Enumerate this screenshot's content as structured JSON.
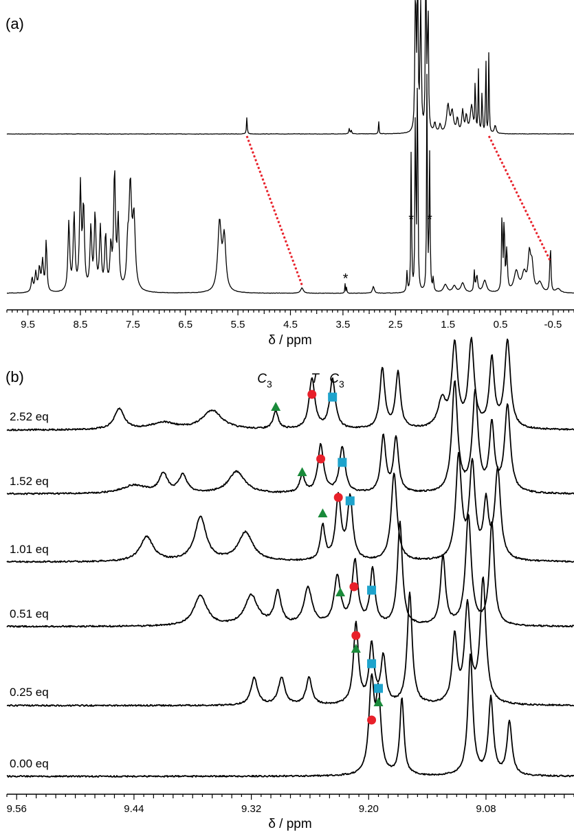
{
  "panel_a": {
    "label": "(a)",
    "xlabel": "δ / ppm",
    "xlim": [
      9.9,
      -0.9
    ],
    "ticks": [
      "9.5",
      "8.5",
      "7.5",
      "6.5",
      "5.5",
      "4.5",
      "3.5",
      "2.5",
      "1.5",
      "0.5",
      "-0.5"
    ],
    "tick_values": [
      9.5,
      8.5,
      7.5,
      6.5,
      5.5,
      4.5,
      3.5,
      2.5,
      1.5,
      0.5,
      -0.5
    ],
    "asterisks": [
      {
        "label": "*",
        "ppm": 3.45
      },
      {
        "label": "*",
        "ppm": 2.2
      },
      {
        "label": "*",
        "ppm": 1.85
      }
    ],
    "correlation_color": "#e8202a"
  },
  "panel_b": {
    "label": "(b)",
    "xlabel": "δ / ppm",
    "xlim": [
      9.57,
      8.99
    ],
    "ticks": [
      "9.56",
      "9.44",
      "9.32",
      "9.20",
      "9.08"
    ],
    "tick_values": [
      9.56,
      9.44,
      9.32,
      9.2,
      9.08
    ],
    "header_labels": [
      {
        "text": "C",
        "sub": "3",
        "ppm": 9.297
      },
      {
        "text": "T",
        "sub": "",
        "ppm": 9.257
      },
      {
        "text": "C",
        "sub": "3",
        "ppm": 9.232
      }
    ],
    "traces": [
      {
        "label": "2.52 eq",
        "triangle": 9.295,
        "circle": 9.258,
        "square": 9.237
      },
      {
        "label": "1.52 eq",
        "triangle": 9.268,
        "circle": 9.249,
        "square": 9.227
      },
      {
        "label": "1.01 eq",
        "triangle": 9.247,
        "circle": 9.231,
        "square": 9.219
      },
      {
        "label": "0.51 eq",
        "triangle": 9.229,
        "circle": 9.215,
        "square": 9.197
      },
      {
        "label": "0.25 eq",
        "triangle": 9.213,
        "circle": 9.213,
        "square": 9.197
      },
      {
        "label": "0.00 eq",
        "triangle": 9.19,
        "circle": 9.197,
        "square": 9.19
      }
    ],
    "marker_colors": {
      "circle": "#e8202a",
      "square": "#1ea3cc",
      "triangle": "#1a8a3a"
    }
  },
  "chart_data": [
    {
      "type": "line",
      "title": "",
      "xlabel": "δ / ppm",
      "xlim": [
        9.9,
        -0.9
      ],
      "x_reversed": true,
      "series": [
        {
          "peaks_ppm": [
            5.33,
            3.38,
            2.82,
            2.08,
            1.9,
            1.5,
            1.2,
            0.95,
            0.75
          ]
        },
        {
          "peaks_ppm": [
            9.35,
            9.2,
            8.65,
            8.45,
            8.15,
            7.85,
            7.55,
            5.85,
            5.7,
            4.28,
            3.45,
            2.92,
            2.2,
            2.08,
            1.88,
            1.8,
            1.0,
            0.45,
            0.4,
            -0.05,
            -0.1,
            -0.45
          ]
        }
      ]
    },
    {
      "type": "line",
      "title": "",
      "xlabel": "δ / ppm",
      "xlim": [
        9.57,
        8.99
      ],
      "x_reversed": true,
      "series": [
        {
          "name": "2.52 eq",
          "peaks_ppm": [
            9.455,
            9.36,
            9.295,
            9.258,
            9.237,
            9.186,
            9.17,
            9.115,
            9.095,
            9.074,
            9.058
          ]
        },
        {
          "name": "1.52 eq",
          "peaks_ppm": [
            9.41,
            9.39,
            9.335,
            9.268,
            9.249,
            9.227,
            9.185,
            9.172,
            9.112,
            9.091,
            9.074,
            9.058
          ]
        },
        {
          "name": "1.01 eq",
          "peaks_ppm": [
            9.427,
            9.372,
            9.326,
            9.247,
            9.231,
            9.219,
            9.174,
            9.108,
            9.094,
            9.08,
            9.068
          ]
        },
        {
          "name": "0.51 eq",
          "peaks_ppm": [
            9.372,
            9.32,
            9.293,
            9.262,
            9.214,
            9.196,
            9.168,
            9.124,
            9.098,
            9.074
          ]
        },
        {
          "name": "0.25 eq",
          "peaks_ppm": [
            9.317,
            9.289,
            9.261,
            9.213,
            9.197,
            9.185,
            9.158,
            9.112,
            9.099,
            9.083
          ]
        },
        {
          "name": "0.00 eq",
          "peaks_ppm": [
            9.197,
            9.19,
            9.166,
            9.096,
            9.075,
            9.056
          ]
        }
      ]
    }
  ]
}
